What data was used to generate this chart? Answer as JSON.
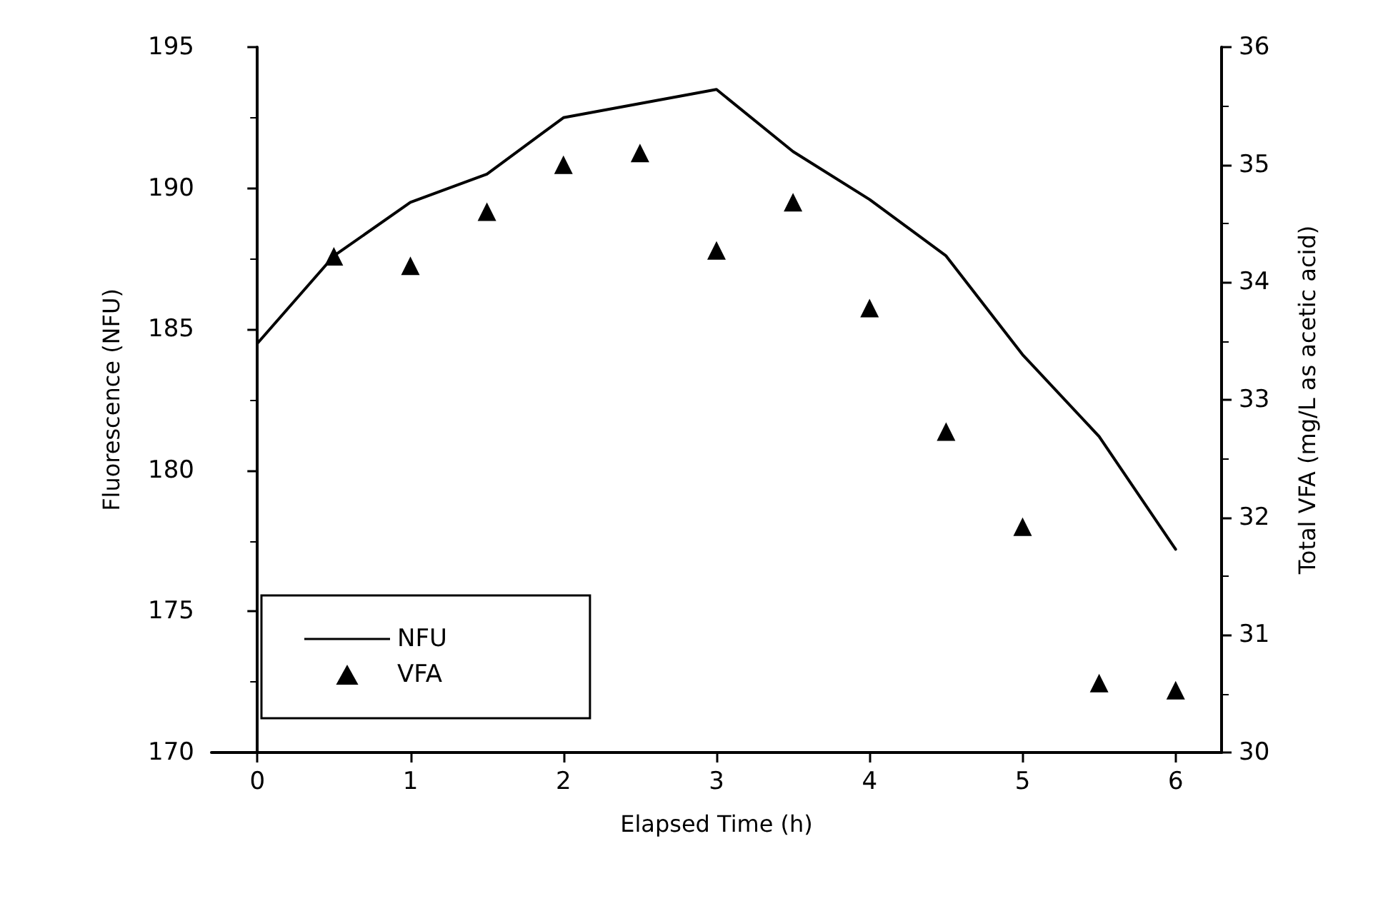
{
  "chart_data": {
    "type": "line",
    "xlabel": "Elapsed Time (h)",
    "ylabel": "Fluorescence (NFU)",
    "y2label": "Total VFA (mg/L as acetic acid)",
    "xlim": [
      -0.3,
      6.3
    ],
    "xticks": [
      0,
      1,
      2,
      3,
      4,
      5,
      6
    ],
    "ylim": [
      170,
      195
    ],
    "yticks": [
      170,
      175,
      180,
      185,
      190,
      195
    ],
    "y2lim": [
      30,
      36
    ],
    "y2ticks": [
      30,
      31,
      32,
      33,
      34,
      35,
      36
    ],
    "grid": false,
    "legend": "bottom left",
    "series": [
      {
        "name": "NFU",
        "color": "#000000",
        "marker": "none",
        "line_style": "solid",
        "x": [
          0,
          0.5,
          1,
          1.5,
          2,
          2.5,
          3,
          3.5,
          4,
          4.5,
          5,
          5.5,
          6
        ],
        "values": [
          184.5,
          187.6,
          189.5,
          190.5,
          192.5,
          193,
          193.5,
          191.3,
          189.6,
          187.6,
          184.1,
          181.2,
          177.2
        ]
      },
      {
        "name": "VFA",
        "type": "scatter",
        "axis": "y2",
        "color": "#000000",
        "marker": "triangle",
        "x": [
          0.5,
          1,
          1.5,
          2,
          2.5,
          3,
          3.5,
          4,
          4.5,
          5,
          5.5,
          6
        ],
        "values": [
          34.22,
          34.14,
          34.6,
          35.0,
          35.1,
          34.27,
          34.68,
          33.78,
          32.73,
          31.92,
          30.59,
          30.53
        ]
      }
    ]
  }
}
